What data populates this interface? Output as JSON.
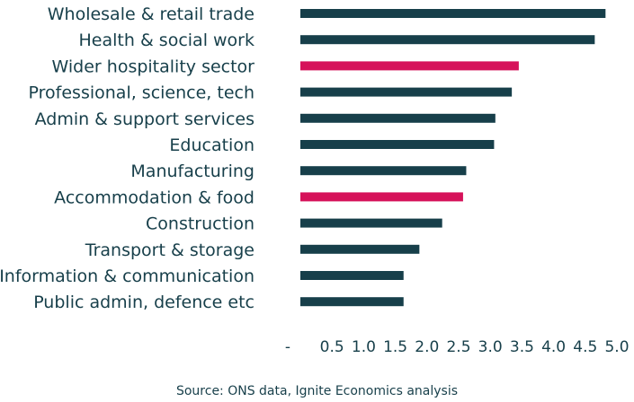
{
  "chart_data": {
    "type": "bar",
    "orientation": "horizontal",
    "categories": [
      "Wholesale & retail trade",
      "Health & social work",
      "Wider hospitality sector",
      "Professional, science, tech",
      "Admin & support services",
      "Education",
      "Manufacturing",
      "Accommodation & food",
      "Construction",
      "Transport & storage",
      "Information & communication",
      "Public admin, defence etc"
    ],
    "values": [
      4.82,
      4.65,
      3.45,
      3.34,
      3.08,
      3.06,
      2.62,
      2.57,
      2.24,
      1.88,
      1.63,
      1.63
    ],
    "highlighted": [
      false,
      false,
      true,
      false,
      false,
      false,
      false,
      true,
      false,
      false,
      false,
      false
    ],
    "xlim": [
      0,
      5.0
    ],
    "x_ticks": [
      "-",
      "0.5",
      "1.0",
      "1.5",
      "2.0",
      "2.5",
      "3.0",
      "3.5",
      "4.0",
      "4.5",
      "5.0"
    ],
    "x_tick_values": [
      0,
      0.5,
      1.0,
      1.5,
      2.0,
      2.5,
      3.0,
      3.5,
      4.0,
      4.5,
      5.0
    ],
    "grid": false,
    "legend": "none",
    "colors": {
      "default_bar": "#173f4a",
      "highlight_bar": "#d6125a",
      "text": "#173f4a"
    }
  },
  "source": "Source: ONS data, Ignite Economics analysis"
}
